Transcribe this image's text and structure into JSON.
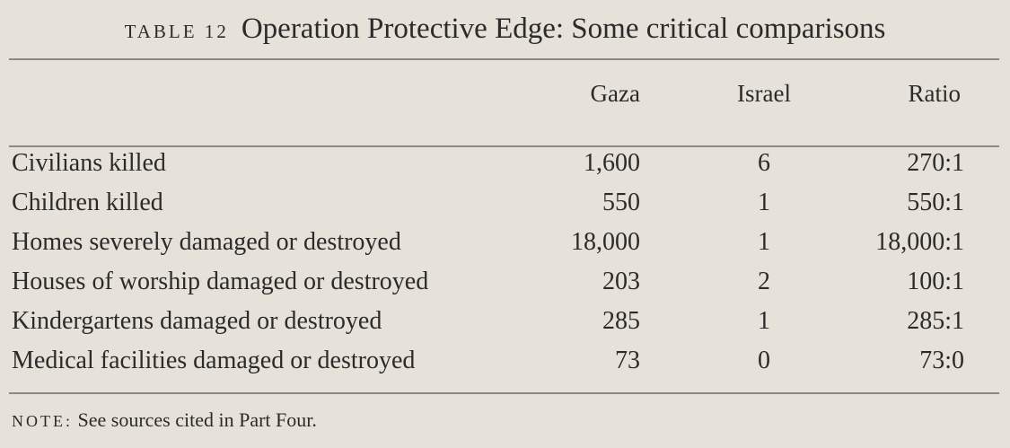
{
  "table": {
    "label": "TABLE 12",
    "title": "Operation Protective Edge: Some critical comparisons",
    "columns": [
      "Gaza",
      "Israel",
      "Ratio"
    ],
    "rows": [
      {
        "label": "Civilians killed",
        "gaza": "1,600",
        "israel": "6",
        "ratio": "270:1"
      },
      {
        "label": "Children killed",
        "gaza": "550",
        "israel": "1",
        "ratio": "550:1"
      },
      {
        "label": "Homes severely damaged or destroyed",
        "gaza": "18,000",
        "israel": "1",
        "ratio": "18,000:1"
      },
      {
        "label": "Houses of worship damaged or destroyed",
        "gaza": "203",
        "israel": "2",
        "ratio": "100:1"
      },
      {
        "label": "Kindergartens damaged or destroyed",
        "gaza": "285",
        "israel": "1",
        "ratio": "285:1"
      },
      {
        "label": "Medical facilities damaged or destroyed",
        "gaza": "73",
        "israel": "0",
        "ratio": "73:0"
      }
    ],
    "note": {
      "label": "NOTE:",
      "text": "See sources cited in Part Four."
    }
  }
}
